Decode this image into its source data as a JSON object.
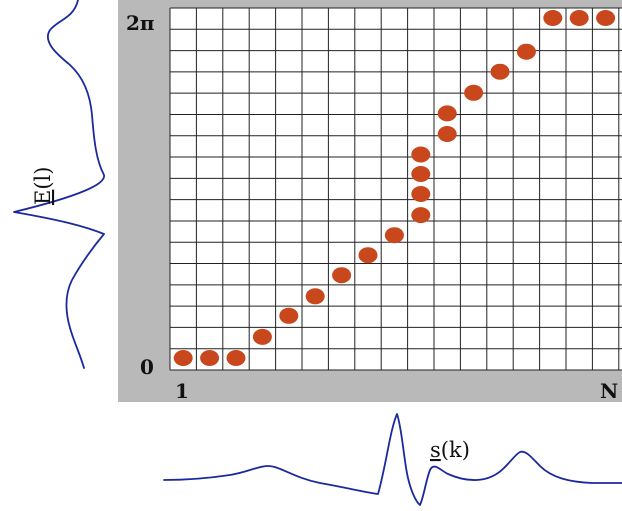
{
  "colors": {
    "frame": "#b9b9b9",
    "grid": "#222222",
    "dot": "#c8471c",
    "signal": "#1a2a9c"
  },
  "grid": {
    "columns": 18,
    "rows": 17
  },
  "ylabels": {
    "top": "2π",
    "bottom": "0"
  },
  "xlabels": {
    "left": "1",
    "right": "N"
  },
  "left_signal_label": {
    "letter": "E",
    "arg": "(l)"
  },
  "bottom_signal_label": {
    "letter": "s",
    "arg": "(k)"
  },
  "chart_data": {
    "type": "scatter",
    "xlim": [
      0.5,
      18.5
    ],
    "ylim": [
      0,
      6.2832
    ],
    "x_ticks": [
      "1",
      "N"
    ],
    "y_ticks": [
      "0",
      "2π"
    ],
    "points": [
      {
        "x": 1,
        "y": 0.0
      },
      {
        "x": 2,
        "y": 0.0
      },
      {
        "x": 3,
        "y": 0.0
      },
      {
        "x": 4,
        "y": 0.39
      },
      {
        "x": 5,
        "y": 0.78
      },
      {
        "x": 6,
        "y": 1.14
      },
      {
        "x": 7,
        "y": 1.53
      },
      {
        "x": 8,
        "y": 1.9
      },
      {
        "x": 9,
        "y": 2.27
      },
      {
        "x": 10,
        "y": 2.64
      },
      {
        "x": 10,
        "y": 3.03
      },
      {
        "x": 10,
        "y": 3.4
      },
      {
        "x": 10,
        "y": 3.76
      },
      {
        "x": 11,
        "y": 4.14
      },
      {
        "x": 11,
        "y": 4.52
      },
      {
        "x": 12,
        "y": 4.9
      },
      {
        "x": 13,
        "y": 5.29
      },
      {
        "x": 14,
        "y": 5.66
      },
      {
        "x": 15,
        "y": 6.2832
      },
      {
        "x": 16,
        "y": 6.2832
      },
      {
        "x": 17,
        "y": 6.2832
      }
    ]
  }
}
